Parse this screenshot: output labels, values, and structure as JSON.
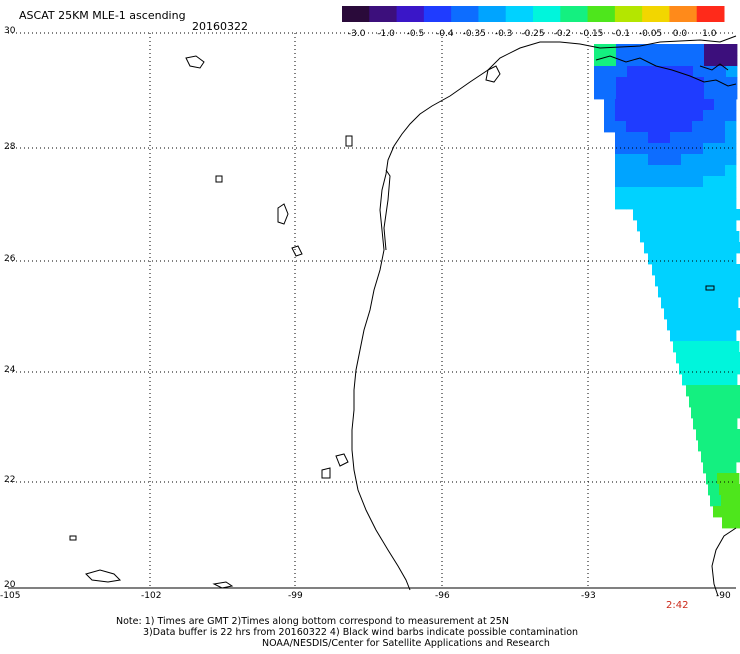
{
  "title": "ASCAT 25KM MLE-1 ascending",
  "date": "20160322",
  "colorbar": {
    "labels": [
      "-3.0",
      "-1.0",
      "-0.5",
      "-0.4",
      "-0.35",
      "-0.3",
      "-0.25",
      "-0.2",
      "-0.15",
      "-0.1",
      "-0.05",
      "0.0",
      "1.0"
    ],
    "colors": [
      "#2a0a3a",
      "#3c0f7c",
      "#3a16c8",
      "#1f3cff",
      "#0d6dff",
      "#00a4ff",
      "#00d2ff",
      "#00f5dc",
      "#14f080",
      "#4ee61c",
      "#b4e600",
      "#f2d600",
      "#ff8a1a",
      "#ff2a1a"
    ]
  },
  "axes": {
    "y_ticks": [
      "30",
      "28",
      "26",
      "24",
      "22",
      "20"
    ],
    "x_ticks": [
      "-105",
      "-102",
      "-99",
      "-96",
      "-93",
      "-90"
    ]
  },
  "pass_time": "2:42",
  "notes": [
    "Note: 1) Times are GMT 2)Times along bottom correspond to measurement at 25N",
    "3)Data buffer is 22 hrs from 20160322 4) Black wind barbs indicate possible contamination",
    "NOAA/NESDIS/Center for Satellite Applications and Research"
  ]
}
